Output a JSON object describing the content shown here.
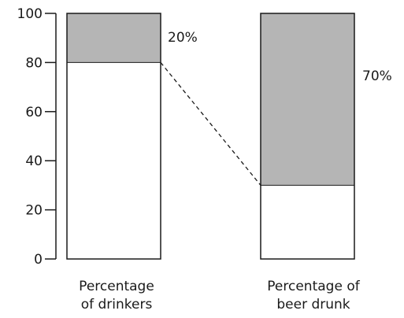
{
  "chart_data": {
    "type": "bar",
    "stacked": true,
    "ylim": [
      0,
      100
    ],
    "yticks": [
      0,
      20,
      40,
      60,
      80,
      100
    ],
    "ytick_labels": [
      "0",
      "20",
      "40",
      "60",
      "80",
      "100"
    ],
    "grid": false,
    "legend": "none",
    "categories": [
      {
        "label_lines": [
          "Percentage",
          "of drinkers"
        ]
      },
      {
        "label_lines": [
          "Percentage of",
          "beer drunk"
        ]
      }
    ],
    "series": [
      {
        "values": [
          80,
          30
        ],
        "color": "#ffffff"
      },
      {
        "values": [
          20,
          70
        ],
        "color": "#b5b5b5"
      }
    ],
    "segment_labels": [
      "20%",
      "70%"
    ],
    "connector": {
      "from_value": 80,
      "to_value": 30,
      "style": "dashed"
    },
    "colors": {
      "axis": "#1a1a1a",
      "outline": "#1a1a1a",
      "shaded": "#b5b5b5"
    }
  }
}
